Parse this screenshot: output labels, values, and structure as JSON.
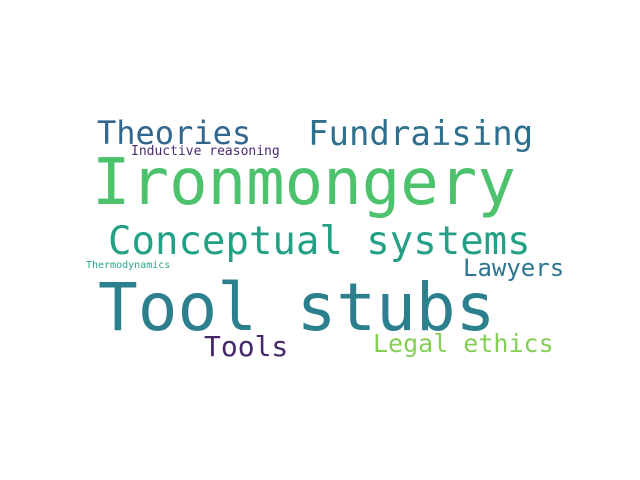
{
  "words": [
    {
      "text": "Ironmongery",
      "color": "#4cc26c"
    },
    {
      "text": "Tool stubs",
      "color": "#2c7f8d"
    },
    {
      "text": "Conceptual systems",
      "color": "#23a085"
    },
    {
      "text": "Fundraising",
      "color": "#2f6f8e"
    },
    {
      "text": "Theories",
      "color": "#31668e"
    },
    {
      "text": "Lawyers",
      "color": "#2d768e"
    },
    {
      "text": "Tools",
      "color": "#46276c"
    },
    {
      "text": "Legal ethics",
      "color": "#86cf55"
    },
    {
      "text": "Inductive reasoning",
      "color": "#4a2b74"
    },
    {
      "text": "Thermodynamics",
      "color": "#29a68b"
    }
  ]
}
